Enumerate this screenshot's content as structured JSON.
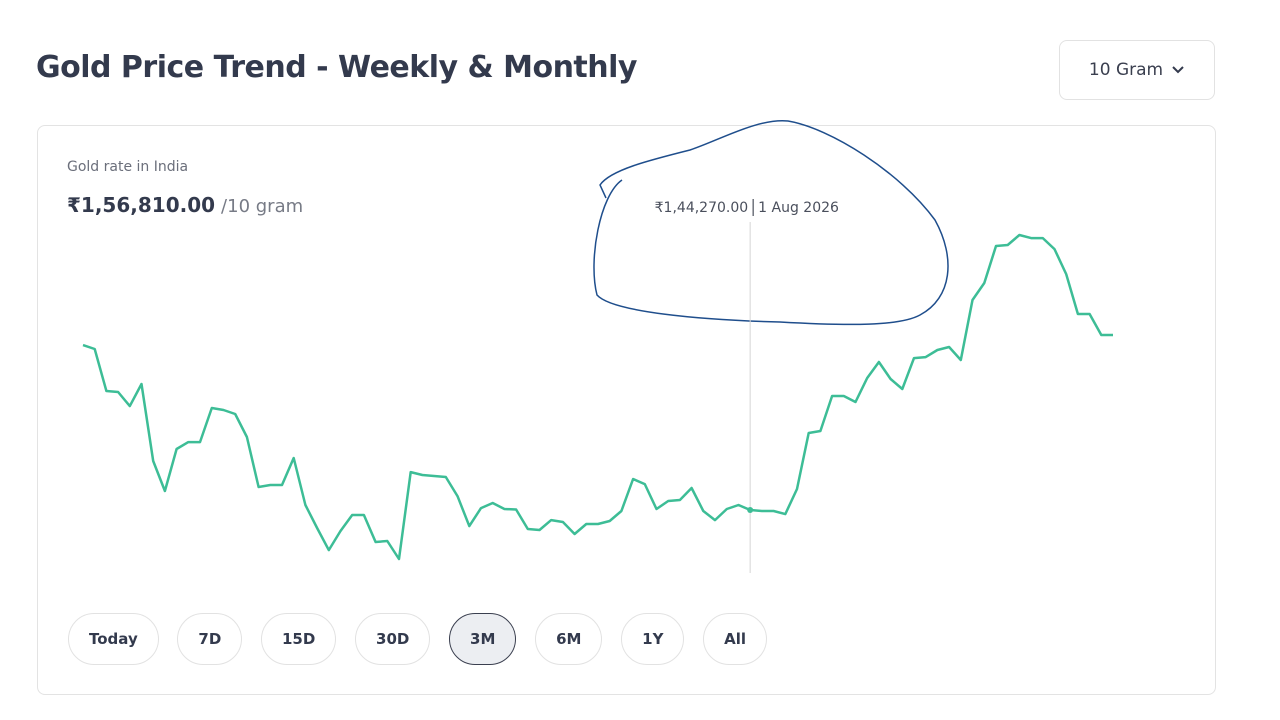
{
  "header": {
    "title": "Gold Price Trend - Weekly & Monthly",
    "unit_selector": "10 Gram"
  },
  "summary": {
    "label": "Gold rate in India",
    "price": "₹1,56,810.00",
    "unit": "/10 gram"
  },
  "chart_data": {
    "type": "line",
    "color": "#3dbd96",
    "values": [
      156090,
      155810,
      152800,
      152730,
      151720,
      153300,
      147780,
      145630,
      148640,
      149140,
      149140,
      151580,
      151440,
      151150,
      149500,
      145920,
      146060,
      146060,
      148000,
      144630,
      142980,
      141400,
      142770,
      143910,
      143910,
      141980,
      142050,
      140760,
      146990,
      146780,
      146710,
      146640,
      145270,
      143120,
      144410,
      144770,
      144340,
      144310,
      142910,
      142840,
      143550,
      143410,
      142550,
      143270,
      143270,
      143480,
      144200,
      146490,
      146130,
      144340,
      144920,
      144990,
      145850,
      144200,
      143550,
      144340,
      144630,
      144270,
      144200,
      144200,
      143980,
      145780,
      149790,
      149930,
      152440,
      152440,
      152010,
      153730,
      154880,
      153660,
      152940,
      155160,
      155230,
      155740,
      155950,
      155020,
      159320,
      160540,
      163190,
      163260,
      163980,
      163760,
      163760,
      162970,
      161180,
      158320,
      158320,
      156810,
      156810
    ],
    "tooltip": {
      "value": 144270,
      "label": "₹1,44,270.00",
      "date": "1 Aug 2026"
    }
  },
  "ranges": [
    {
      "label": "Today",
      "selected": false
    },
    {
      "label": "7D",
      "selected": false
    },
    {
      "label": "15D",
      "selected": false
    },
    {
      "label": "30D",
      "selected": false
    },
    {
      "label": "3M",
      "selected": true
    },
    {
      "label": "6M",
      "selected": false
    },
    {
      "label": "1Y",
      "selected": false
    },
    {
      "label": "All",
      "selected": false
    }
  ]
}
